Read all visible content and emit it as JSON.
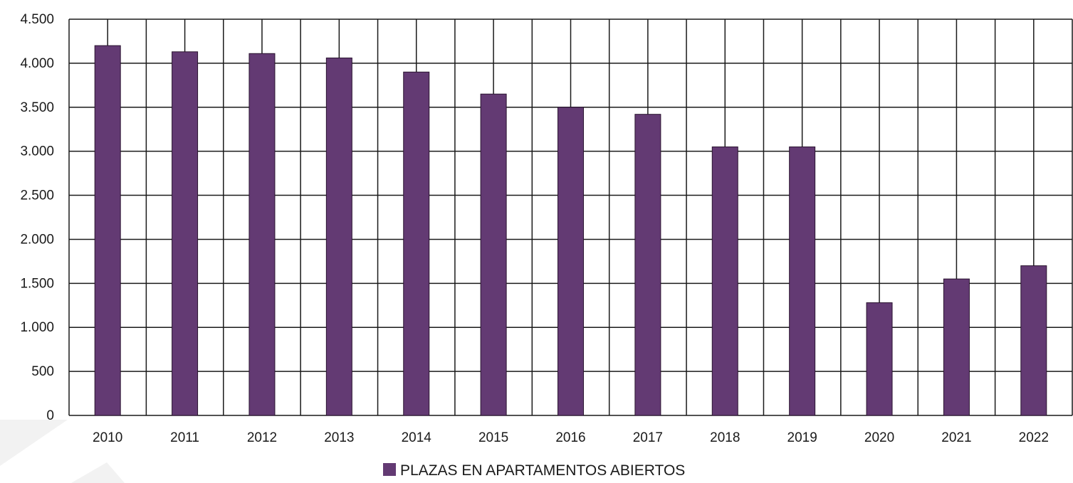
{
  "chart_data": {
    "type": "bar",
    "categories": [
      "2010",
      "2011",
      "2012",
      "2013",
      "2014",
      "2015",
      "2016",
      "2017",
      "2018",
      "2019",
      "2020",
      "2021",
      "2022"
    ],
    "series": [
      {
        "name": "PLAZAS EN APARTAMENTOS ABIERTOS",
        "values": [
          4200,
          4130,
          4110,
          4060,
          3900,
          3650,
          3500,
          3420,
          3050,
          3050,
          1280,
          1550,
          1700
        ]
      }
    ],
    "ylim": [
      0,
      4500
    ],
    "yticks": [
      0,
      500,
      1000,
      1500,
      2000,
      2500,
      3000,
      3500,
      4000,
      4500
    ],
    "ytick_labels": [
      "0",
      "500",
      "1.000",
      "1.500",
      "2.000",
      "2.500",
      "3.000",
      "3.500",
      "4.000",
      "4.500"
    ],
    "grid": true,
    "legend_position": "bottom-center",
    "colors": {
      "bar": "#633a73",
      "grid": "#1a1a1a",
      "background_shape": "#f1f1f1"
    }
  }
}
